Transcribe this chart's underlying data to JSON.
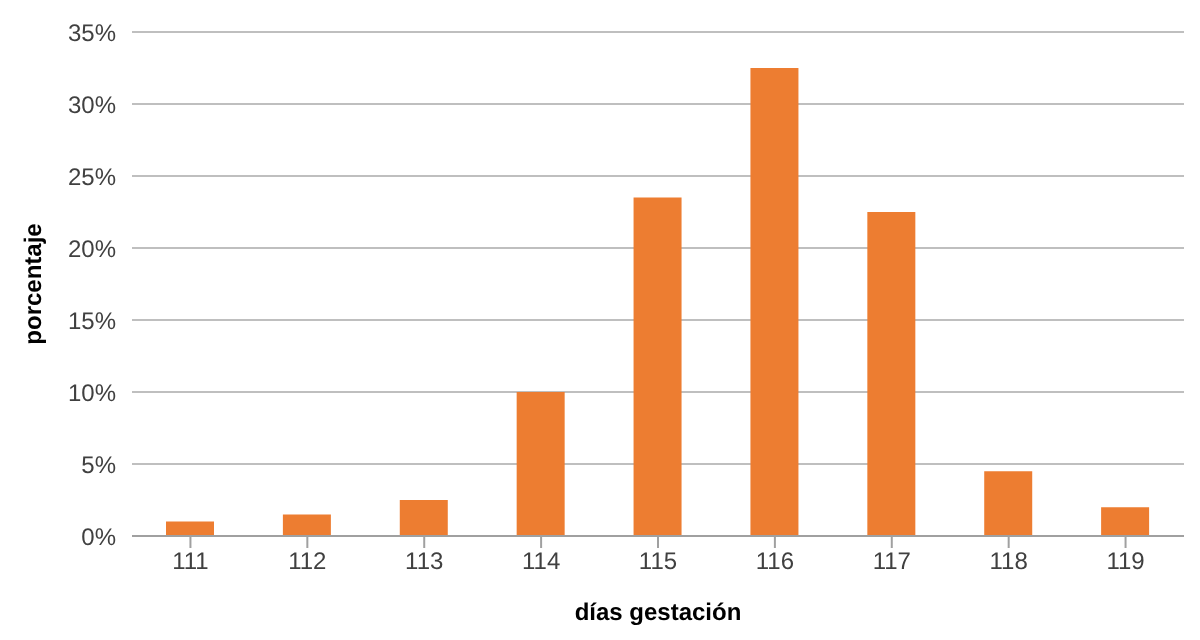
{
  "chart_data": {
    "type": "bar",
    "xlabel": "días gestación",
    "ylabel": "porcentaje",
    "categories": [
      "111",
      "112",
      "113",
      "114",
      "115",
      "116",
      "117",
      "118",
      "119"
    ],
    "values": [
      1,
      1.5,
      2.5,
      10,
      23.5,
      32.5,
      22.5,
      4.5,
      2
    ],
    "color": "#ed7d31",
    "ylim": [
      0,
      35
    ],
    "yticks": [
      {
        "value": 0,
        "label": "0%"
      },
      {
        "value": 5,
        "label": "5%"
      },
      {
        "value": 10,
        "label": "10%"
      },
      {
        "value": 15,
        "label": "15%"
      },
      {
        "value": 20,
        "label": "20%"
      },
      {
        "value": 25,
        "label": "25%"
      },
      {
        "value": 30,
        "label": "30%"
      },
      {
        "value": 35,
        "label": "35%"
      }
    ],
    "grid": "y",
    "legend": false
  }
}
